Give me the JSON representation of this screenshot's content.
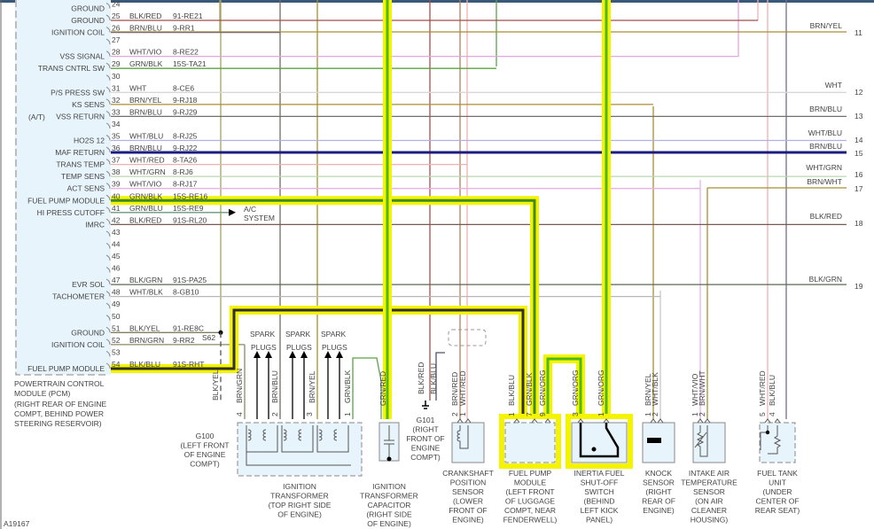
{
  "pcm": {
    "title": [
      "POWERTRAIN CONTROL",
      "MODULE (PCM)"
    ],
    "location": [
      "(RIGHT REAR OF ENGINE",
      "COMPT, BEHIND POWER",
      "STEERING RESERVOIR)"
    ],
    "at_note": "(A/T)",
    "splice": "S62",
    "pins": [
      {
        "pin": "24",
        "label": "GROUND"
      },
      {
        "pin": "25",
        "label": "GROUND",
        "wire": "BLK/RED",
        "circuit": "91-RE21",
        "hex": "#a0524a"
      },
      {
        "pin": "26",
        "label": "IGNITION COIL",
        "wire": "BRN/BLU",
        "circuit": "9-RR1",
        "hex": "#7a6a60"
      },
      {
        "pin": "27"
      },
      {
        "pin": "28",
        "label": "VSS SIGNAL",
        "wire": "WHT/VIO",
        "circuit": "8-RE22",
        "hex": "#e0a8e0"
      },
      {
        "pin": "29",
        "label": "TRANS CNTRL SW",
        "wire": "GRN/BLK",
        "circuit": "15S-TA21",
        "hex": "#5aa540"
      },
      {
        "pin": "30"
      },
      {
        "pin": "31",
        "label": "P/S PRESS SW",
        "wire": "WHT",
        "circuit": "8-CE6",
        "hex": "#d8d8d8"
      },
      {
        "pin": "32",
        "label": "KS SENS",
        "wire": "BRN/YEL",
        "circuit": "9-RJ18",
        "hex": "#a89030"
      },
      {
        "pin": "33",
        "label": "VSS RETURN",
        "wire": "BRN/BLU",
        "circuit": "9-RJ29",
        "hex": "#707070"
      },
      {
        "pin": "34"
      },
      {
        "pin": "35",
        "label": "HO2S 12",
        "wire": "WHT/BLU",
        "circuit": "8-RJ25",
        "hex": "#b0b0e8"
      },
      {
        "pin": "36",
        "label": "MAF RETURN",
        "wire": "BRN/BLU",
        "circuit": "9-RJ22",
        "hex": "#1c1c80"
      },
      {
        "pin": "37",
        "label": "TRANS TEMP",
        "wire": "WHT/RED",
        "circuit": "8-TA26",
        "hex": "#f0b0b0"
      },
      {
        "pin": "38",
        "label": "TEMP SENS",
        "wire": "WHT/GRN",
        "circuit": "8-RJ6",
        "hex": "#b8d8b0"
      },
      {
        "pin": "39",
        "label": "ACT SENS",
        "wire": "WHT/VIO",
        "circuit": "8-RJ17",
        "hex": "#e8b0e8"
      },
      {
        "pin": "40",
        "label": "FUEL PUMP MODULE",
        "wire": "GRN/BLK",
        "circuit": "15S-RE16",
        "hex": "#3c8a28"
      },
      {
        "pin": "41",
        "label": "HI PRESS CUTOFF",
        "wire": "GRN/BLU",
        "circuit": "15S-RE9",
        "hex": "#6a9a80"
      },
      {
        "pin": "42",
        "label": "IMRC",
        "wire": "BLK/RED",
        "circuit": "91S-RL20",
        "hex": "#7a5a50"
      },
      {
        "pin": "43"
      },
      {
        "pin": "44"
      },
      {
        "pin": "45"
      },
      {
        "pin": "46"
      },
      {
        "pin": "47",
        "label": "EVR SOL",
        "wire": "BLK/GRN",
        "circuit": "91S-PA25",
        "hex": "#5a6a50"
      },
      {
        "pin": "48",
        "label": "TACHOMETER",
        "wire": "WHT/BLK",
        "circuit": "8-GB10",
        "hex": "#b8b8b8"
      },
      {
        "pin": "49"
      },
      {
        "pin": "50"
      },
      {
        "pin": "51",
        "label": "GROUND",
        "wire": "BLK/YEL",
        "circuit": "91-RE8C",
        "hex": "#808060"
      },
      {
        "pin": "52",
        "label": "IGNITION COIL",
        "wire": "BRN/GRN",
        "circuit": "9-RR2",
        "hex": "#8a8a60"
      },
      {
        "pin": "53"
      },
      {
        "pin": "54",
        "label": "FUEL PUMP MODULE",
        "wire": "BLK/BLU",
        "circuit": "91S-RHT",
        "hex": "#303020"
      }
    ]
  },
  "ac_system": [
    "A/C",
    "SYSTEM"
  ],
  "right_connectors": [
    {
      "wire": "BRN/YEL",
      "num": "11"
    },
    {
      "wire": "WHT",
      "num": "12"
    },
    {
      "wire": "BRN/BLU",
      "num": "13"
    },
    {
      "wire": "WHT/BLU",
      "num": "14"
    },
    {
      "wire": "BRN/BLU",
      "num": "15"
    },
    {
      "wire": "WHT/GRN",
      "num": "16"
    },
    {
      "wire": "BRN/WHT",
      "num": "17"
    },
    {
      "wire": "BLK/RED",
      "num": "18"
    },
    {
      "wire": "BLK/GRN",
      "num": "19"
    }
  ],
  "spark_plugs": [
    "SPARK",
    "PLUGS"
  ],
  "grounds": {
    "g100": {
      "wire": "BLK/YEL",
      "label": [
        "G100",
        "(LEFT FRONT",
        "OF ENGINE",
        "COMPT)"
      ]
    },
    "g101": {
      "wires": [
        "BLK/RED",
        "BLK/BLU"
      ],
      "label": [
        "G101",
        "(RIGHT",
        "FRONT OF",
        "ENGINE",
        "COMPT)"
      ]
    }
  },
  "components": {
    "ignition_transformer": {
      "wires": [
        "BRN/GRN",
        "BRN/BLU",
        "BRN/YEL",
        "GRN/BLK"
      ],
      "pins": [
        "4",
        "2",
        "3",
        "1"
      ],
      "label": [
        "IGNITION",
        "TRANSFORMER",
        "(TOP RIGHT SIDE",
        "OF ENGINE)"
      ]
    },
    "capacitor": {
      "wire": "GRN/RED",
      "label": [
        "IGNITION",
        "TRANSFORMER",
        "CAPACITOR",
        "(RIGHT SIDE",
        "OF ENGINE)"
      ]
    },
    "crankshaft": {
      "wires": [
        "BRN/RED",
        "WHT/RED"
      ],
      "pins": [
        "2",
        "1"
      ],
      "label": [
        "CRANKSHAFT",
        "POSITION",
        "SENSOR",
        "(LOWER",
        "FRONT OF",
        "ENGINE)"
      ]
    },
    "fuel_pump": {
      "wires": [
        "BLK/BLU",
        "GRN/BLK",
        "GRN/ORG"
      ],
      "pins": [
        "1",
        "7",
        "9"
      ],
      "label": [
        "FUEL PUMP",
        "MODULE",
        "(LEFT FRONT",
        "OF LUGGAGE",
        "COMPT, NEAR",
        "FENDERWELL)"
      ]
    },
    "inertia": {
      "wires": [
        "GRN/ORG",
        "GRN/ORG"
      ],
      "pins": [
        "3",
        "1"
      ],
      "label": [
        "INERTIA FUEL",
        "SHUT-OFF",
        "SWITCH",
        "(BEHIND",
        "LEFT KICK",
        "PANEL)"
      ]
    },
    "knock": {
      "wires": [
        "BRN/YEL",
        "WHT/BLK"
      ],
      "pins": [
        "1",
        "2"
      ],
      "label": [
        "KNOCK",
        "SENSOR",
        "(RIGHT",
        "REAR OF",
        "ENGINE)"
      ]
    },
    "intake_air": {
      "wires": [
        "WHT/VIO",
        "BRN/WHT"
      ],
      "pins": [
        "1",
        "2"
      ],
      "label": [
        "INTAKE AIR",
        "TEMPERATURE",
        "SENSOR",
        "(ON AIR",
        "CLEANER",
        "HOUSING)"
      ]
    },
    "fuel_tank": {
      "wires": [
        "WHT/RED",
        "BLK/BLU"
      ],
      "pins": [
        "5",
        "4"
      ],
      "label": [
        "FUEL TANK",
        "UNIT",
        "(UNDER",
        "CENTER OF",
        "REAR SEAT)"
      ]
    }
  },
  "figure_id": "A19167",
  "colors": {
    "highlight": "#f4f400",
    "green": "#4cb81c",
    "pcm_fill": "#e8f4fc"
  }
}
